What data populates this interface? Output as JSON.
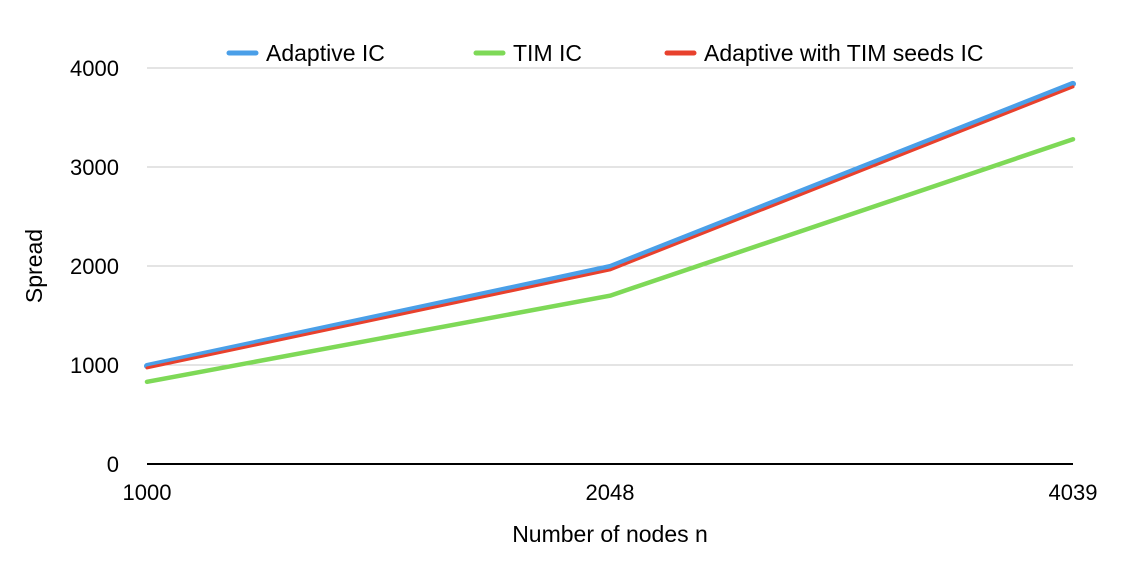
{
  "chart_data": {
    "type": "line",
    "x": [
      "1000",
      "2048",
      "4039"
    ],
    "categories": [
      "1000",
      "2048",
      "4039"
    ],
    "series": [
      {
        "name": "Adaptive IC",
        "values": [
          990,
          1990,
          3840
        ],
        "color": "#4a9fe8"
      },
      {
        "name": "TIM IC",
        "values": [
          830,
          1700,
          3280
        ],
        "color": "#7ed957"
      },
      {
        "name": "Adaptive with TIM seeds IC",
        "values": [
          970,
          1960,
          3810
        ],
        "color": "#e8412d"
      }
    ],
    "xlabel": "Number of nodes n",
    "ylabel": "Spread",
    "ylim": [
      0,
      4000
    ],
    "yticks": [
      "0",
      "1000",
      "2000",
      "3000",
      "4000"
    ],
    "grid": true,
    "legend": "top"
  }
}
